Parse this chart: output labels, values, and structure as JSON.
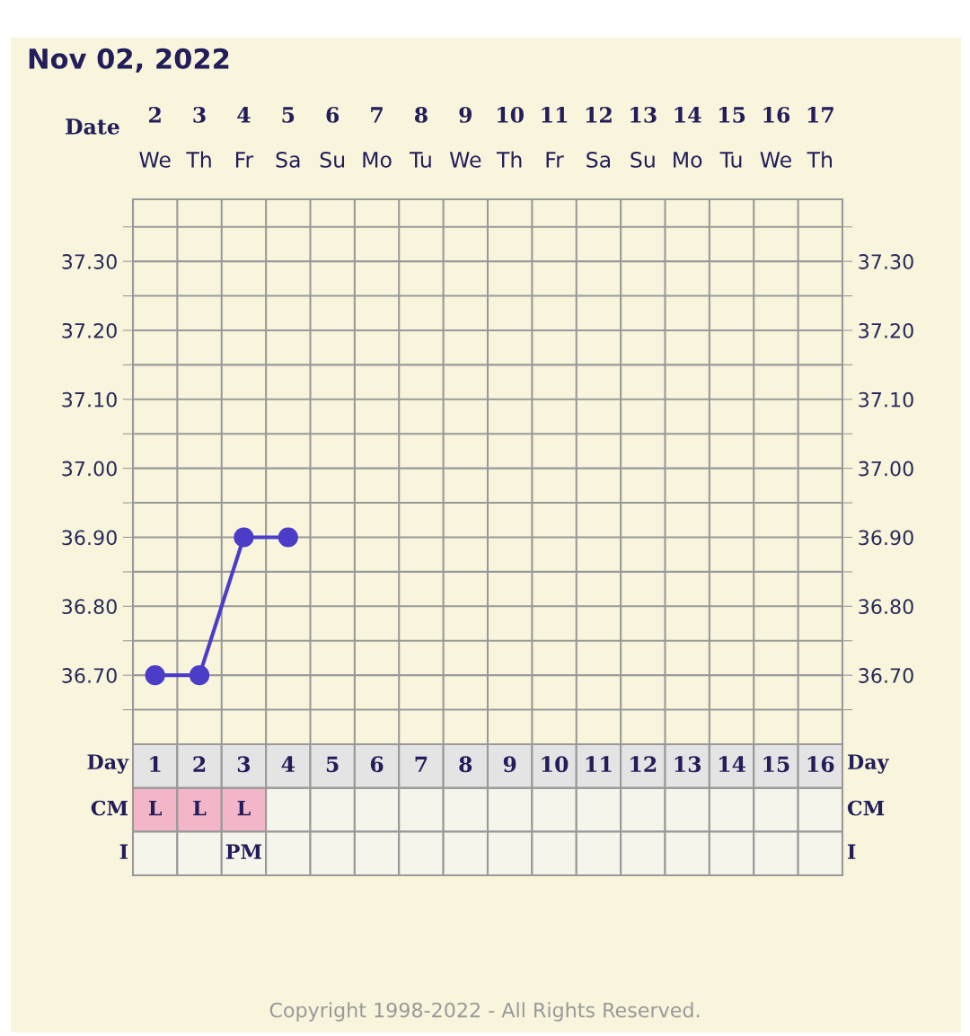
{
  "chart_data": [
    {
      "type": "line",
      "title": "Nov 02, 2022",
      "xlabel": "Date",
      "categories": [
        "2\nWe",
        "3\nTh",
        "4\nFr",
        "5\nSa",
        "6\nSu",
        "7\nMo",
        "8\nTu",
        "9\nWe",
        "10\nTh",
        "11\nFr",
        "12\nSa",
        "13\nSu",
        "14\nMo",
        "15\nTu",
        "16\nWe",
        "17\nTh"
      ],
      "series": [
        {
          "color": "#4b3dc8",
          "values": [
            36.7,
            36.7,
            36.9,
            36.9,
            null,
            null,
            null,
            null,
            null,
            null,
            null,
            null,
            null,
            null,
            null,
            null
          ]
        }
      ],
      "ylim": [
        36.6,
        37.39
      ],
      "yticks": [
        {
          "value": 36.65,
          "label": null
        },
        {
          "value": 36.7,
          "label": "36.70"
        },
        {
          "value": 36.75,
          "label": null
        },
        {
          "value": 36.8,
          "label": "36.80"
        },
        {
          "value": 36.85,
          "label": null
        },
        {
          "value": 36.9,
          "label": "36.90"
        },
        {
          "value": 36.95,
          "label": null
        },
        {
          "value": 37.0,
          "label": "37.00"
        },
        {
          "value": 37.05,
          "label": null
        },
        {
          "value": 37.1,
          "label": "37.10"
        },
        {
          "value": 37.15,
          "label": null
        },
        {
          "value": 37.2,
          "label": "37.20"
        },
        {
          "value": 37.25,
          "label": null
        },
        {
          "value": 37.3,
          "label": "37.30"
        },
        {
          "value": 37.35,
          "label": null
        }
      ],
      "y2lim": [
        36.6,
        37.39
      ],
      "y2ticks": [
        {
          "value": 36.65,
          "label": null
        },
        {
          "value": 36.7,
          "label": "36.70"
        },
        {
          "value": 36.75,
          "label": null
        },
        {
          "value": 36.8,
          "label": "36.80"
        },
        {
          "value": 36.85,
          "label": null
        },
        {
          "value": 36.9,
          "label": "36.90"
        },
        {
          "value": 36.95,
          "label": null
        },
        {
          "value": 37.0,
          "label": "37.00"
        },
        {
          "value": 37.05,
          "label": null
        },
        {
          "value": 37.1,
          "label": "37.10"
        },
        {
          "value": 37.15,
          "label": null
        },
        {
          "value": 37.2,
          "label": "37.20"
        },
        {
          "value": 37.25,
          "label": null
        },
        {
          "value": 37.3,
          "label": "37.30"
        },
        {
          "value": 37.35,
          "label": null
        }
      ],
      "grid": true,
      "marker": "circle",
      "line_style": "solid",
      "annotations": [
        "Copyright 1998-2022 - All Rights Reserved."
      ]
    },
    {
      "type": "heatmap",
      "xlabel": "Day",
      "categories": [
        "1",
        "2",
        "3",
        "4",
        "5",
        "6",
        "7",
        "8",
        "9",
        "10",
        "11",
        "12",
        "13",
        "14",
        "15",
        "16"
      ],
      "y_categories": [
        "CM",
        "I"
      ],
      "y2_categories": [
        "CM",
        "I"
      ],
      "colors": [
        [
          "#f2b6c8",
          "#f2b6c8",
          "#f2b6c8",
          null,
          null,
          null,
          null,
          null,
          null,
          null,
          null,
          null,
          null,
          null,
          null,
          null
        ],
        [
          null,
          null,
          null,
          null,
          null,
          null,
          null,
          null,
          null,
          null,
          null,
          null,
          null,
          null,
          null,
          null
        ]
      ],
      "cells": [
        [
          null,
          null,
          null,
          null,
          null,
          null,
          null,
          null,
          null,
          null,
          null,
          null,
          null,
          null,
          null,
          null
        ],
        [
          null,
          null,
          null,
          null,
          null,
          null,
          null,
          null,
          null,
          null,
          null,
          null,
          null,
          null,
          null,
          null
        ]
      ],
      "cell_labels": [
        [
          "L",
          "L",
          "L",
          null,
          null,
          null,
          null,
          null,
          null,
          null,
          null,
          null,
          null,
          null,
          null,
          null
        ],
        [
          null,
          null,
          "PM",
          null,
          null,
          null,
          null,
          null,
          null,
          null,
          null,
          null,
          null,
          null,
          null,
          null
        ]
      ]
    }
  ]
}
